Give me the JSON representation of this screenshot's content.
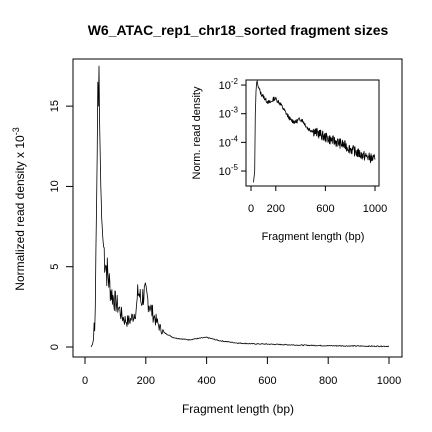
{
  "chart_data": {
    "type": "line",
    "title": "W6_ATAC_rep1_chr18_sorted fragment sizes",
    "xlabel": "Fragment length (bp)",
    "ylabel": "Normalized read density x 10",
    "ylabel_exponent": "-3",
    "xlim": [
      0,
      1000
    ],
    "ylim": [
      0,
      17.5
    ],
    "x_ticks": [
      0,
      200,
      400,
      600,
      800,
      1000
    ],
    "y_ticks": [
      0,
      5,
      10,
      15
    ],
    "series": [
      {
        "x": [
          20,
          25,
          28,
          30,
          32,
          34,
          36,
          38,
          40,
          42,
          44,
          46,
          48,
          50,
          52,
          55,
          58,
          60,
          63,
          66,
          70,
          75,
          80,
          85,
          90,
          95,
          100,
          110,
          120,
          130,
          140,
          150,
          160,
          170,
          175,
          180,
          185,
          190,
          195,
          200,
          205,
          210,
          215,
          220,
          230,
          240,
          250,
          260,
          270,
          280,
          290,
          300,
          320,
          340,
          360,
          380,
          400,
          420,
          440,
          460,
          480,
          500,
          550,
          600,
          650,
          700,
          750,
          800,
          850,
          900,
          950,
          1000
        ],
        "values": [
          0,
          0.2,
          0.5,
          1.5,
          1.0,
          2.5,
          6,
          9,
          12,
          16.5,
          15,
          17.5,
          14,
          12,
          10,
          8,
          7,
          6.5,
          6,
          5.5,
          5,
          4.5,
          4,
          3.5,
          3.2,
          3,
          2.8,
          2.5,
          2,
          1.7,
          1.6,
          1.7,
          2,
          2.5,
          3.5,
          3.2,
          2.8,
          3.2,
          3.3,
          3.2,
          3,
          2.8,
          2.5,
          2.2,
          1.8,
          1.4,
          1.1,
          0.9,
          0.8,
          0.7,
          0.6,
          0.55,
          0.5,
          0.45,
          0.5,
          0.55,
          0.6,
          0.5,
          0.4,
          0.35,
          0.3,
          0.25,
          0.2,
          0.18,
          0.15,
          0.12,
          0.1,
          0.08,
          0.07,
          0.06,
          0.05,
          0.05
        ]
      }
    ],
    "inset": {
      "type": "line",
      "xlabel": "Fragment length (bp)",
      "ylabel": "Norm. read density",
      "xlim": [
        0,
        1000
      ],
      "y_scale": "log",
      "ylim": [
        3e-06,
        0.015
      ],
      "x_ticks": [
        0,
        200,
        600,
        1000
      ],
      "y_ticks": [
        {
          "base": "10",
          "exp": "-5",
          "value": 1e-05
        },
        {
          "base": "10",
          "exp": "-4",
          "value": 0.0001
        },
        {
          "base": "10",
          "exp": "-3",
          "value": 0.001
        },
        {
          "base": "10",
          "exp": "-2",
          "value": 0.01
        }
      ],
      "x": [
        20,
        30,
        35,
        40,
        45,
        50,
        55,
        60,
        70,
        80,
        100,
        120,
        140,
        160,
        180,
        190,
        200,
        210,
        220,
        240,
        260,
        280,
        300,
        320,
        340,
        360,
        380,
        400,
        420,
        440,
        460,
        500,
        550,
        600,
        650,
        700,
        750,
        800,
        850,
        900,
        950,
        1000
      ],
      "values": [
        4e-06,
        1e-05,
        0.001,
        0.006,
        0.012,
        0.014,
        0.01,
        0.008,
        0.0065,
        0.005,
        0.004,
        0.003,
        0.0025,
        0.0025,
        0.0032,
        0.0034,
        0.0033,
        0.003,
        0.0027,
        0.0021,
        0.0015,
        0.0011,
        0.0008,
        0.0006,
        0.00055,
        0.0005,
        0.0006,
        0.00065,
        0.00055,
        0.0004,
        0.0003,
        0.00025,
        0.0002,
        0.00015,
        0.00012,
        0.0001,
        8e-05,
        6e-05,
        4.5e-05,
        3.5e-05,
        3e-05,
        2.5e-05
      ]
    }
  }
}
